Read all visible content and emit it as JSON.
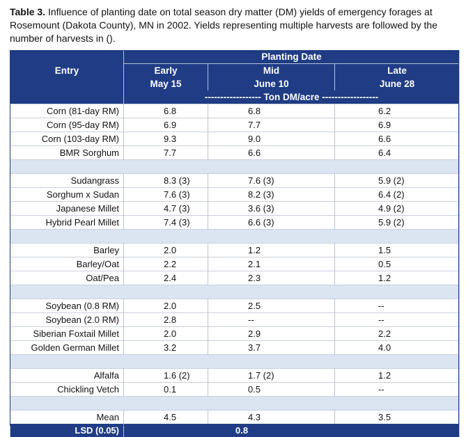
{
  "caption": {
    "label": "Table 3.",
    "text": " Influence of planting date on total season dry matter (DM) yields of emergency forages at Rosemount (Dakota County), MN in 2002.  Yields representing multiple harvests are followed by the number of harvests in ()."
  },
  "header": {
    "entry": "Entry",
    "planting_date": "Planting Date",
    "early": "Early",
    "early_date": "May 15",
    "mid": "Mid",
    "mid_date": "June 10",
    "late": "Late",
    "late_date": "June 28",
    "units": "------------------ Ton DM/acre ------------------"
  },
  "groups": [
    [
      {
        "entry": "Corn (81-day RM)",
        "early": "6.8",
        "mid": "6.8",
        "late": "6.2"
      },
      {
        "entry": "Corn (95-day RM)",
        "early": "6.9",
        "mid": "7.7",
        "late": "6.9"
      },
      {
        "entry": "Corn (103-day RM)",
        "early": "9.3",
        "mid": "9.0",
        "late": "6.6"
      },
      {
        "entry": "BMR Sorghum",
        "early": "7.7",
        "mid": "6.6",
        "late": "6.4"
      }
    ],
    [
      {
        "entry": "Sudangrass",
        "early": "8.3 (3)",
        "mid": "7.6 (3)",
        "late": "5.9 (2)"
      },
      {
        "entry": "Sorghum x Sudan",
        "early": "7.6 (3)",
        "mid": "8.2 (3)",
        "late": "6.4 (2)"
      },
      {
        "entry": "Japanese Millet",
        "early": "4.7 (3)",
        "mid": "3.6 (3)",
        "late": "4.9 (2)"
      },
      {
        "entry": "Hybrid Pearl Millet",
        "early": "7.4 (3)",
        "mid": "6.6 (3)",
        "late": "5.9 (2)"
      }
    ],
    [
      {
        "entry": "Barley",
        "early": "2.0",
        "mid": "1.2",
        "late": "1.5"
      },
      {
        "entry": "Barley/Oat",
        "early": "2.2",
        "mid": "2.1",
        "late": "0.5"
      },
      {
        "entry": "Oat/Pea",
        "early": "2.4",
        "mid": "2.3",
        "late": "1.2"
      }
    ],
    [
      {
        "entry": "Soybean (0.8 RM)",
        "early": "2.0",
        "mid": "2.5",
        "late": "--"
      },
      {
        "entry": "Soybean (2.0 RM)",
        "early": "2.8",
        "mid": "--",
        "late": "--"
      },
      {
        "entry": "Siberian Foxtail Millet",
        "early": "2.0",
        "mid": "2.9",
        "late": "2.2"
      },
      {
        "entry": "Golden German Millet",
        "early": "3.2",
        "mid": "3.7",
        "late": "4.0"
      }
    ],
    [
      {
        "entry": "Alfalfa",
        "early": "1.6 (2)",
        "mid": "1.7 (2)",
        "late": "1.2"
      },
      {
        "entry": "Chickling Vetch",
        "early": "0.1",
        "mid": "0.5",
        "late": "--"
      }
    ],
    [
      {
        "entry": "Mean",
        "early": "4.5",
        "mid": "4.3",
        "late": "3.5"
      }
    ]
  ],
  "lsd": {
    "label": "LSD (0.05)",
    "value": "0.8"
  },
  "colors": {
    "header_bg": "#1f3c84",
    "separator_bg": "#dbe4f1",
    "header_text": "#ffffff"
  }
}
